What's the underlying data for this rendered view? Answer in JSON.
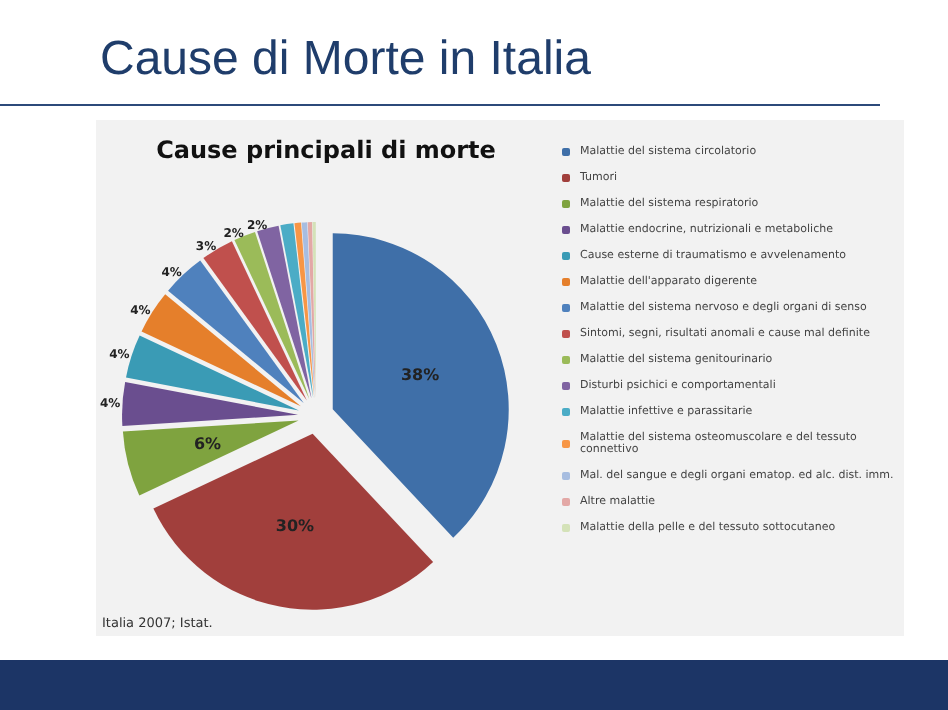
{
  "chart_data": {
    "type": "pie",
    "title": "Cause di Morte in Italia",
    "subtitle": "Cause principali di morte",
    "categories": [
      "Malattie del sistema circolatorio",
      "Tumori",
      "Malattie del sistema respiratorio",
      "Malattie endocrine, nutrizionali e metaboliche",
      "Cause esterne di traumatismo e avvelenamento",
      "Malattie dell'apparato digerente",
      "Malattie del sistema nervoso e degli organi di senso",
      "Sintomi, segni, risultati anomali e cause mal definite",
      "Malattie del sistema genitourinario",
      "Disturbi psichici e comportamentali",
      "Malattie infettive e parassitarie",
      "Malattie del sistema osteomuscolare e del tessuto connettivo",
      "Mal. del sangue e degli organi ematop. ed alc. dist. imm.",
      "Altre malattie",
      "Malattie della pelle e del tessuto sottocutaneo"
    ],
    "values": [
      38,
      30,
      6,
      4,
      4,
      4,
      4,
      3,
      2,
      2,
      1.2,
      0.6,
      0.5,
      0.4,
      0.3
    ],
    "value_labels": [
      "38%",
      "30%",
      "6%",
      "4%",
      "4%",
      "4%",
      "4%",
      "3%",
      "2%",
      "2%",
      null,
      null,
      null,
      null,
      null
    ],
    "colors": [
      "#3f6fa8",
      "#a13f3c",
      "#7fa33f",
      "#6a4e8f",
      "#3a9bb5",
      "#e57f2b",
      "#4f81bd",
      "#c0504d",
      "#9bbb59",
      "#8064a2",
      "#4bacc6",
      "#f79646",
      "#a7bde0",
      "#e3a8a6",
      "#d4e2b8"
    ],
    "legend": "right",
    "annotations": [
      "Italia 2007; Istat."
    ]
  }
}
